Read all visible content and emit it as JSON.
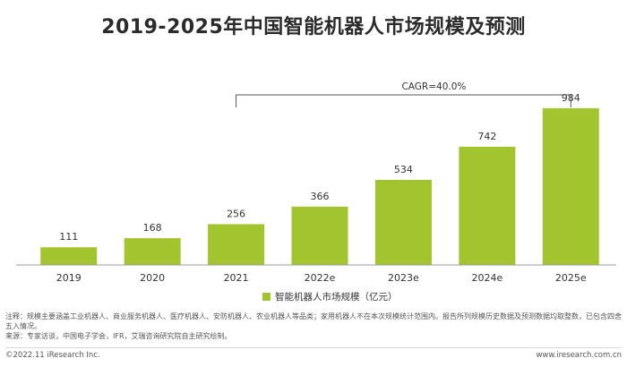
{
  "chart_data": {
    "type": "bar",
    "title": "2019-2025年中国智能机器人市场规模及预测",
    "categories": [
      "2019",
      "2020",
      "2021",
      "2022e",
      "2023e",
      "2024e",
      "2025e"
    ],
    "series": [
      {
        "name": "智能机器人市场规模（亿元）",
        "values": [
          111,
          168,
          256,
          366,
          534,
          742,
          984
        ]
      }
    ],
    "ylim": [
      0,
      1000
    ],
    "grid": false,
    "legend_position": "bottom",
    "annotation": "CAGR=40.0%",
    "annotation_span": [
      "2021",
      "2025e"
    ]
  },
  "colors": {
    "bar": "#a2c52f",
    "axis": "#9a9a9a",
    "text": "#333333"
  },
  "notes": {
    "line1": "注释：规模主要涵盖工业机器人、商业服务机器人、医疗机器人、安防机器人、农业机器人等品类；家用机器人不在本次规模统计范围内。报告所列规模历史数据及预测数据均取整数，已包含四舍五入情况。",
    "line2": "来源：专家访谈，中国电子学会，IFR，艾瑞咨询研究院自主研究绘制。"
  },
  "footer": {
    "left": "©2022.11 iResearch Inc.",
    "right": "www.iresearch.com.cn"
  }
}
